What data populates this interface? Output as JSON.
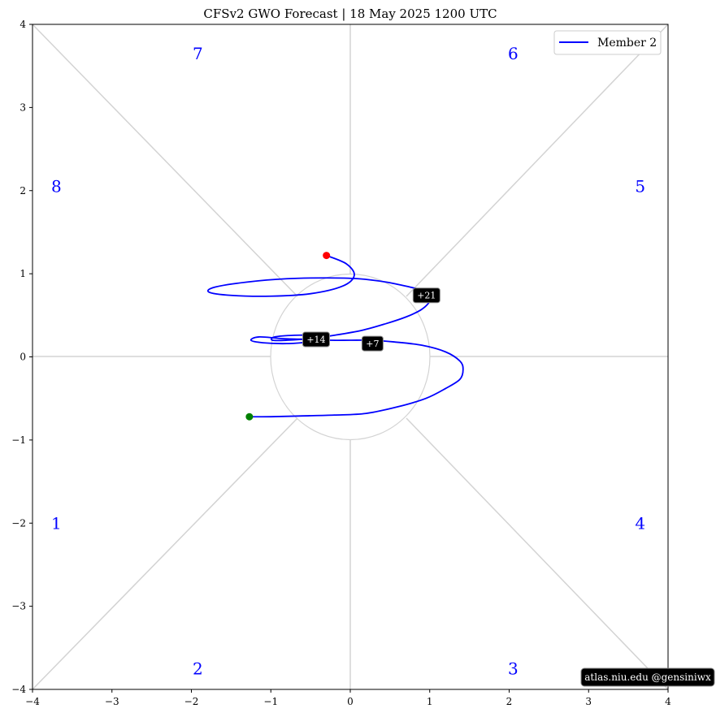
{
  "chart_data": {
    "type": "line",
    "title": "CFSv2 GWO Forecast   |   18  May  2025 1200 UTC",
    "xlim": [
      -4,
      4
    ],
    "ylim": [
      -4,
      4
    ],
    "x_ticks": [
      -4,
      -3,
      -2,
      -1,
      0,
      1,
      2,
      3,
      4
    ],
    "y_ticks": [
      -4,
      -3,
      -2,
      -1,
      0,
      1,
      2,
      3,
      4
    ],
    "legend": {
      "placement": "top-right",
      "entries": [
        "Member 2"
      ]
    },
    "phases": [
      {
        "label": "1",
        "x": -3.7,
        "y": -2.0
      },
      {
        "label": "2",
        "x": -1.92,
        "y": -3.75
      },
      {
        "label": "3",
        "x": 2.05,
        "y": -3.75
      },
      {
        "label": "4",
        "x": 3.65,
        "y": -2.0
      },
      {
        "label": "5",
        "x": 3.65,
        "y": 2.05
      },
      {
        "label": "6",
        "x": 2.05,
        "y": 3.65
      },
      {
        "label": "7",
        "x": -1.92,
        "y": 3.65
      },
      {
        "label": "8",
        "x": -3.7,
        "y": 2.05
      }
    ],
    "series": [
      {
        "name": "Member 2",
        "color": "#0000ff",
        "x": [
          -1.27,
          -1.0,
          -0.6,
          -0.2,
          0.2,
          0.6,
          0.95,
          1.2,
          1.38,
          1.42,
          1.38,
          1.2,
          0.9,
          0.55,
          0.25,
          0.0,
          -0.25,
          -0.5,
          -0.85,
          -1.15,
          -1.25,
          -1.1,
          -0.8,
          -0.5,
          -0.35,
          -0.3,
          -0.45,
          -0.7,
          -0.95,
          -0.98,
          -0.8,
          -0.5,
          -0.2,
          0.15,
          0.45,
          0.7,
          0.88,
          0.98,
          1.02,
          0.95,
          0.75,
          0.45,
          0.1,
          -0.3,
          -0.8,
          -1.3,
          -1.7,
          -1.78,
          -1.5,
          -1.0,
          -0.5,
          -0.1,
          0.05,
          -0.05,
          -0.3
        ],
        "y": [
          -0.72,
          -0.72,
          -0.71,
          -0.7,
          -0.68,
          -0.6,
          -0.5,
          -0.38,
          -0.27,
          -0.15,
          -0.05,
          0.06,
          0.14,
          0.18,
          0.2,
          0.2,
          0.2,
          0.21,
          0.22,
          0.24,
          0.2,
          0.17,
          0.16,
          0.18,
          0.2,
          0.24,
          0.26,
          0.26,
          0.24,
          0.2,
          0.2,
          0.22,
          0.26,
          0.32,
          0.4,
          0.48,
          0.56,
          0.64,
          0.72,
          0.79,
          0.84,
          0.9,
          0.94,
          0.95,
          0.94,
          0.9,
          0.84,
          0.78,
          0.74,
          0.73,
          0.76,
          0.85,
          0.98,
          1.12,
          1.22
        ],
        "start_color": "#008000",
        "end_color": "#ff0000",
        "day_labels": [
          {
            "text": "+7",
            "x": 0.28,
            "y": 0.16
          },
          {
            "text": "+14",
            "x": -0.43,
            "y": 0.21
          },
          {
            "text": "+21",
            "x": 0.96,
            "y": 0.74
          }
        ]
      }
    ],
    "credit": "atlas.niu.edu  @gensiniwx"
  }
}
